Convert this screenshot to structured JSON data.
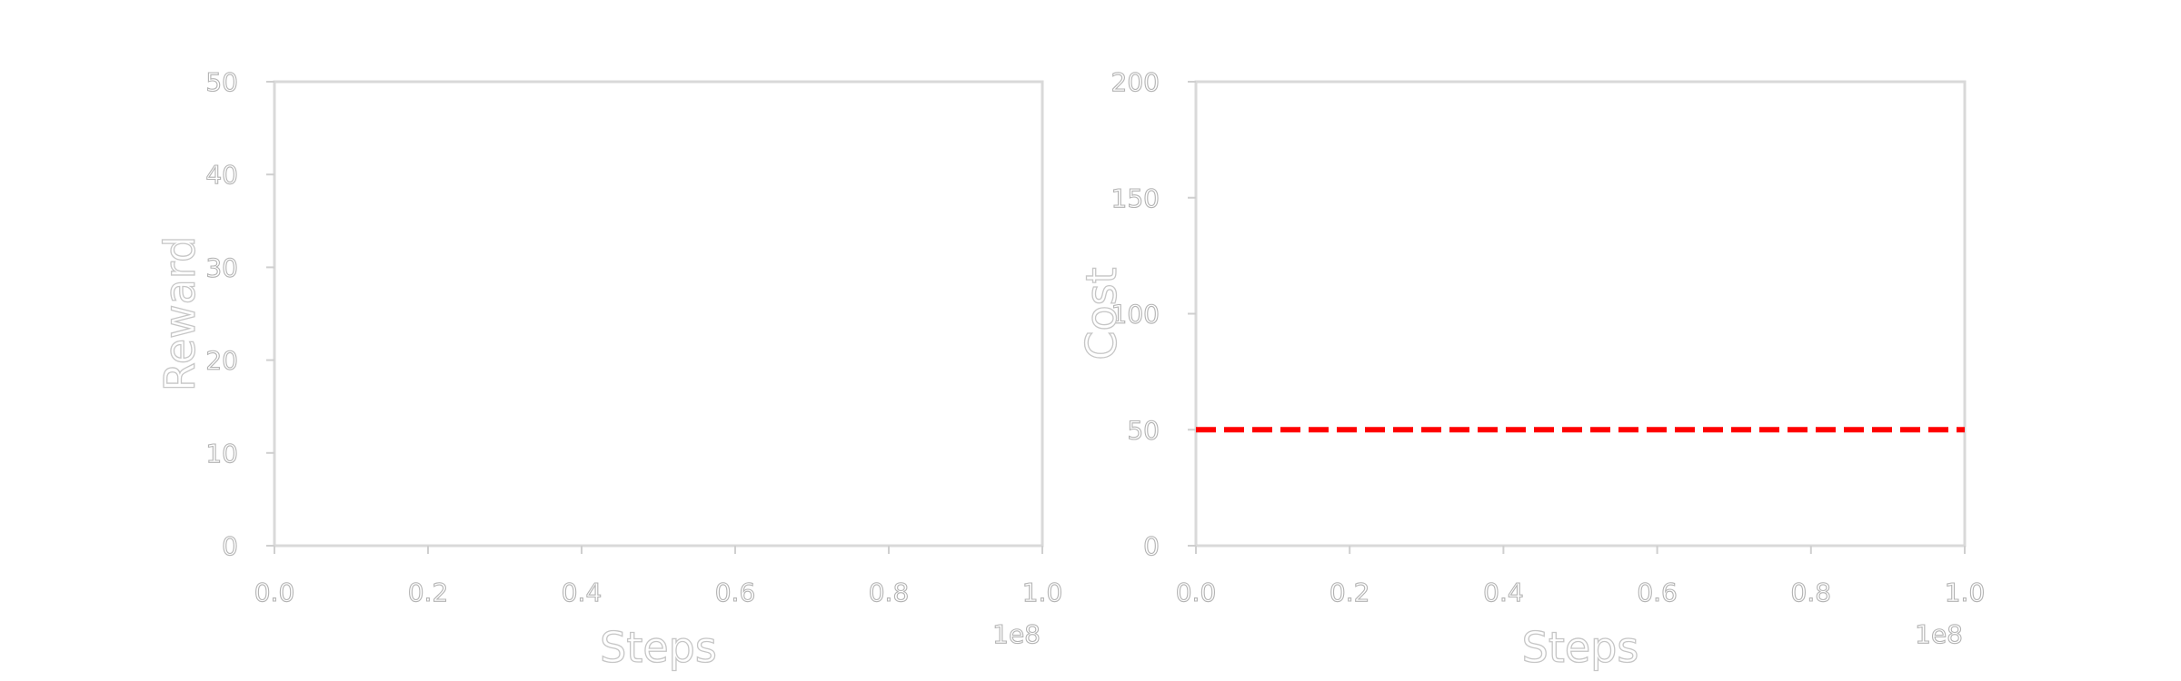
{
  "chart_data": [
    {
      "type": "line",
      "xlabel": "Steps",
      "ylabel": "Reward",
      "xlim": [
        0,
        100000000
      ],
      "ylim": [
        0,
        50
      ],
      "x_offset_label": "1e8",
      "x_ticks": [
        0,
        20000000,
        40000000,
        60000000,
        80000000,
        100000000
      ],
      "x_tick_labels": [
        "0.0",
        "0.2",
        "0.4",
        "0.6",
        "0.8",
        "1.0"
      ],
      "y_ticks": [
        0,
        10,
        20,
        30,
        40,
        50
      ],
      "y_tick_labels": [
        "0",
        "10",
        "20",
        "30",
        "40",
        "50"
      ],
      "grid": false,
      "series": [],
      "reference_lines": []
    },
    {
      "type": "line",
      "xlabel": "Steps",
      "ylabel": "Cost",
      "xlim": [
        0,
        100000000
      ],
      "ylim": [
        0,
        200
      ],
      "x_offset_label": "1e8",
      "x_ticks": [
        0,
        20000000,
        40000000,
        60000000,
        80000000,
        100000000
      ],
      "x_tick_labels": [
        "0.0",
        "0.2",
        "0.4",
        "0.6",
        "0.8",
        "1.0"
      ],
      "y_ticks": [
        0,
        50,
        100,
        150,
        200
      ],
      "y_tick_labels": [
        "0",
        "50",
        "100",
        "150",
        "200"
      ],
      "grid": false,
      "series": [],
      "reference_lines": [
        {
          "orientation": "horizontal",
          "y": 50,
          "color": "#ff0000",
          "style": "dashed"
        }
      ]
    }
  ]
}
